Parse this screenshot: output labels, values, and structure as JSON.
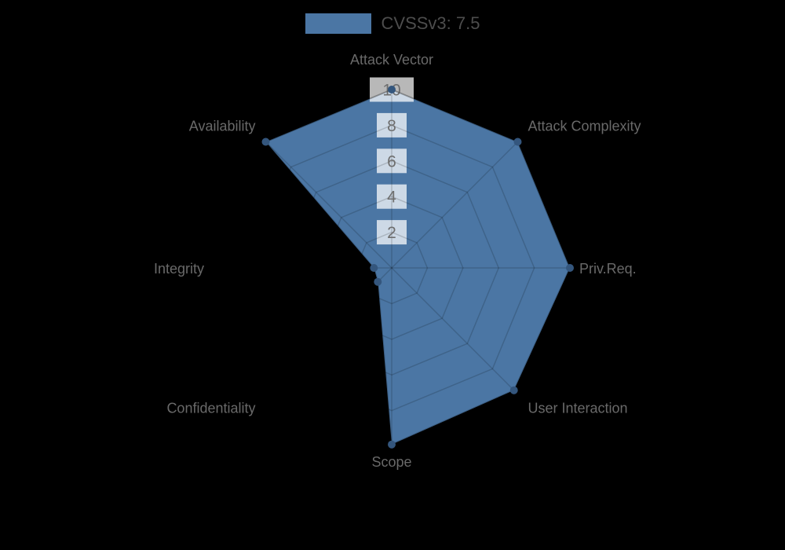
{
  "legend": {
    "label": "CVSSv3: 7.5"
  },
  "chart_data": {
    "type": "radar",
    "title": "",
    "legend_entries": [
      "CVSSv3: 7.5"
    ],
    "axes": [
      "Attack Vector",
      "Attack Complexity",
      "Priv.Req.",
      "User Interaction",
      "Scope",
      "Confidentiality",
      "Integrity",
      "Availability"
    ],
    "series": [
      {
        "name": "CVSSv3: 7.5",
        "values": [
          10,
          10,
          10,
          9.7,
          9.9,
          1.1,
          1.0,
          10
        ]
      }
    ],
    "scale": {
      "min": 0,
      "max": 10,
      "tick_step": 2,
      "tick_labels": [
        "2",
        "4",
        "6",
        "8",
        "10"
      ],
      "grid_shape": "polygon",
      "grid_on": true
    },
    "legend_position": "top",
    "colors": {
      "area_fill": "#4b76a4",
      "area_border": "rgba(0,0,0,0.2)",
      "marker": "#34567d",
      "grid_line": "rgba(0,0,0,0.16)",
      "tick_backdrop": "rgba(255,255,255,0.72)",
      "tick_text": "#6e6e6e",
      "axis_label_text": "#696969",
      "legend_text": "#4d4d4d",
      "background": "#000000"
    }
  }
}
